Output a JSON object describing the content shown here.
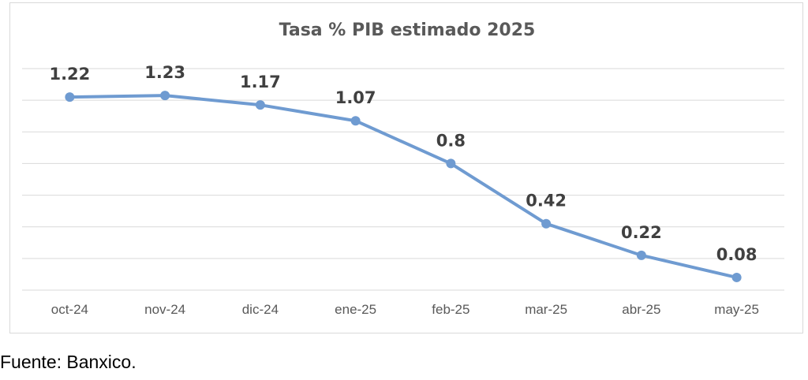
{
  "chart_data": {
    "type": "line",
    "title": "Tasa % PIB estimado 2025",
    "categories": [
      "oct-24",
      "nov-24",
      "dic-24",
      "ene-25",
      "feb-25",
      "mar-25",
      "abr-25",
      "may-25"
    ],
    "series": [
      {
        "values": [
          1.22,
          1.23,
          1.17,
          1.07,
          0.8,
          0.42,
          0.22,
          0.08
        ],
        "labels": [
          "1.22",
          "1.23",
          "1.17",
          "1.07",
          "0.8",
          "0.42",
          "0.22",
          "0.08"
        ]
      }
    ],
    "ylim": [
      0,
      1.4
    ],
    "grid": true,
    "legend": "none",
    "line_color": "#6f9bd1",
    "label_color": "#404040"
  },
  "footer": {
    "source": "Fuente: Banxico."
  }
}
